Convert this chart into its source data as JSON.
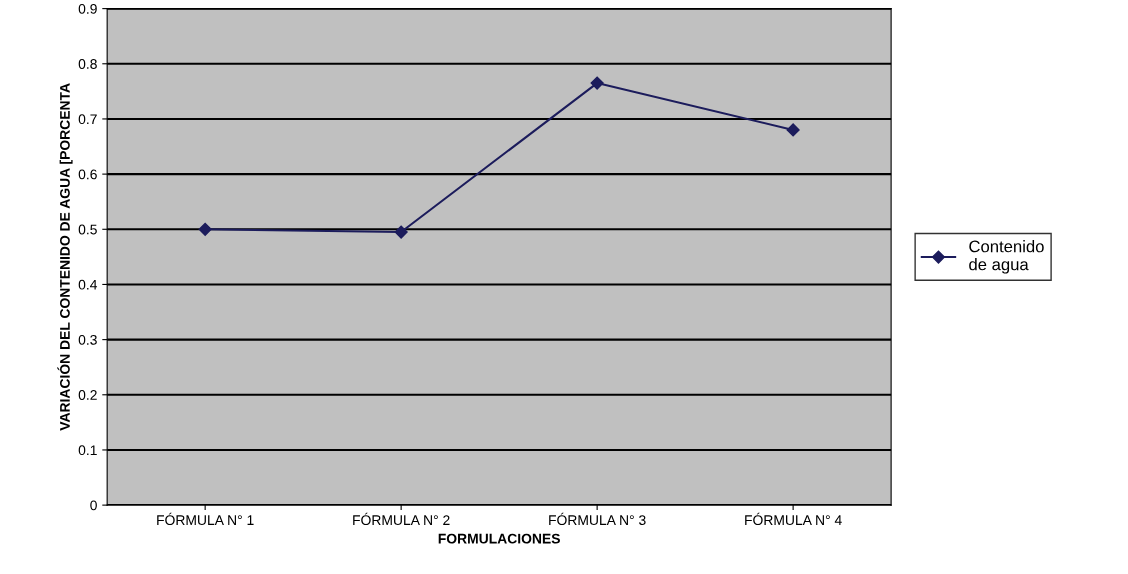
{
  "chart_data": {
    "type": "line",
    "xlabel": "FORMULACIONES",
    "ylabel": "VARIACIÓN DEL CONTENIDO DE AGUA [PORCENTA",
    "categories": [
      "FÓRMULA N° 1",
      "FÓRMULA N° 2",
      "FÓRMULA N° 3",
      "FÓRMULA N° 4"
    ],
    "series": [
      {
        "name": "Contenido de agua",
        "color": "#1c1c5c",
        "values": [
          0.5,
          0.495,
          0.765,
          0.68
        ]
      }
    ],
    "ylim": [
      0,
      0.9
    ],
    "yticks": [
      0,
      0.1,
      0.2,
      0.3,
      0.4,
      0.5,
      0.6,
      0.7,
      0.8,
      0.9
    ],
    "grid": "y",
    "legend": "right",
    "marker": "diamond"
  }
}
